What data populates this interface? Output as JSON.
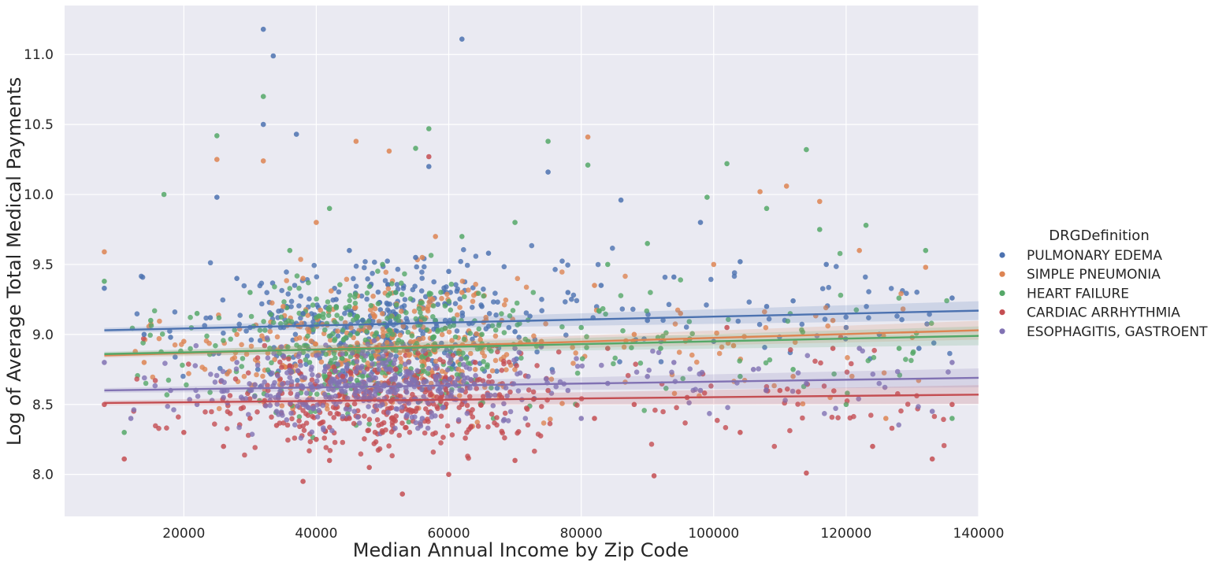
{
  "chart_data": {
    "type": "scatter",
    "xlabel": "Median Annual Income by Zip Code",
    "ylabel": "Log of Average Total Medical Payments",
    "xlim": [
      2000,
      140000
    ],
    "ylim": [
      7.7,
      11.35
    ],
    "x_ticks": [
      20000,
      40000,
      60000,
      80000,
      100000,
      120000,
      140000
    ],
    "y_ticks": [
      8.0,
      8.5,
      9.0,
      9.5,
      10.0,
      10.5,
      11.0
    ],
    "grid": true,
    "background": "#eaeaf2",
    "legend": {
      "title": "DRGDefinition",
      "placement": "right"
    },
    "series": [
      {
        "name": "PULMONARY EDEMA",
        "color": "#4c72b0",
        "regression": {
          "x": [
            8000,
            140000
          ],
          "y": [
            9.03,
            9.17
          ]
        },
        "points": [
          [
            32000,
            11.18
          ],
          [
            33500,
            10.99
          ],
          [
            62000,
            11.11
          ],
          [
            32000,
            10.5
          ],
          [
            37000,
            10.43
          ],
          [
            25000,
            9.98
          ],
          [
            86000,
            9.96
          ],
          [
            75000,
            10.16
          ],
          [
            57000,
            10.2
          ],
          [
            8000,
            9.33
          ],
          [
            131000,
            8.9
          ],
          [
            136000,
            9.26
          ],
          [
            125000,
            9.0
          ],
          [
            112000,
            9.24
          ],
          [
            117000,
            9.5
          ],
          [
            104000,
            9.52
          ],
          [
            94000,
            9.41
          ],
          [
            83000,
            9.35
          ],
          [
            66000,
            9.58
          ],
          [
            60000,
            9.45
          ],
          [
            52000,
            9.3
          ],
          [
            47000,
            9.1
          ],
          [
            43000,
            9.25
          ],
          [
            38000,
            9.15
          ],
          [
            30000,
            9.05
          ],
          [
            24000,
            9.12
          ],
          [
            18000,
            8.98
          ],
          [
            14000,
            9.0
          ],
          [
            50000,
            8.9
          ],
          [
            70000,
            9.02
          ],
          [
            90000,
            9.1
          ],
          [
            100000,
            8.95
          ],
          [
            108000,
            9.2
          ],
          [
            120000,
            9.05
          ],
          [
            28000,
            9.4
          ],
          [
            45000,
            9.6
          ],
          [
            55000,
            9.55
          ],
          [
            65000,
            9.2
          ],
          [
            78000,
            9.3
          ],
          [
            98000,
            9.8
          ]
        ]
      },
      {
        "name": "SIMPLE PNEUMONIA",
        "color": "#dd8452",
        "regression": {
          "x": [
            8000,
            140000
          ],
          "y": [
            8.85,
            9.03
          ]
        },
        "points": [
          [
            8000,
            9.59
          ],
          [
            25000,
            10.25
          ],
          [
            32000,
            10.24
          ],
          [
            46000,
            10.38
          ],
          [
            81000,
            10.41
          ],
          [
            51000,
            10.31
          ],
          [
            107000,
            10.02
          ],
          [
            111000,
            10.06
          ],
          [
            132000,
            9.48
          ],
          [
            122000,
            9.6
          ],
          [
            116000,
            9.95
          ],
          [
            40000,
            9.8
          ],
          [
            56000,
            9.55
          ],
          [
            62000,
            9.3
          ],
          [
            68000,
            9.1
          ],
          [
            35000,
            9.2
          ],
          [
            28000,
            9.0
          ],
          [
            20000,
            8.95
          ],
          [
            14000,
            8.8
          ],
          [
            44000,
            8.9
          ],
          [
            48000,
            9.05
          ],
          [
            54000,
            8.85
          ],
          [
            74000,
            8.95
          ],
          [
            88000,
            9.0
          ],
          [
            95000,
            9.15
          ],
          [
            103000,
            8.92
          ],
          [
            118000,
            9.1
          ],
          [
            126000,
            8.4
          ],
          [
            112000,
            8.7
          ],
          [
            38000,
            9.4
          ],
          [
            58000,
            9.7
          ],
          [
            64000,
            8.75
          ],
          [
            82000,
            9.35
          ],
          [
            100000,
            9.5
          ]
        ]
      },
      {
        "name": "HEART FAILURE",
        "color": "#55a868",
        "regression": {
          "x": [
            8000,
            140000
          ],
          "y": [
            8.86,
            8.99
          ]
        },
        "points": [
          [
            32000,
            10.7
          ],
          [
            25000,
            10.42
          ],
          [
            57000,
            10.47
          ],
          [
            114000,
            10.32
          ],
          [
            102000,
            10.22
          ],
          [
            81000,
            10.21
          ],
          [
            55000,
            10.33
          ],
          [
            75000,
            10.38
          ],
          [
            17000,
            10.0
          ],
          [
            8000,
            9.38
          ],
          [
            136000,
            8.4
          ],
          [
            132000,
            9.6
          ],
          [
            123000,
            9.78
          ],
          [
            128000,
            8.9
          ],
          [
            116000,
            9.75
          ],
          [
            108000,
            9.9
          ],
          [
            99000,
            9.98
          ],
          [
            90000,
            9.65
          ],
          [
            84000,
            9.5
          ],
          [
            70000,
            9.8
          ],
          [
            62000,
            9.7
          ],
          [
            50000,
            9.5
          ],
          [
            42000,
            9.9
          ],
          [
            36000,
            9.6
          ],
          [
            30000,
            9.3
          ],
          [
            22000,
            9.15
          ],
          [
            15000,
            9.1
          ],
          [
            11000,
            8.3
          ],
          [
            45000,
            9.2
          ],
          [
            52000,
            9.3
          ],
          [
            58000,
            9.1
          ],
          [
            65000,
            9.0
          ],
          [
            72000,
            8.95
          ],
          [
            80000,
            9.05
          ],
          [
            92000,
            8.9
          ],
          [
            104000,
            8.7
          ],
          [
            112000,
            8.75
          ],
          [
            120000,
            8.5
          ],
          [
            39000,
            8.8
          ],
          [
            47000,
            8.7
          ]
        ]
      },
      {
        "name": "CARDIAC ARRHYTHMIA",
        "color": "#c44e52",
        "regression": {
          "x": [
            8000,
            140000
          ],
          "y": [
            8.51,
            8.57
          ]
        },
        "points": [
          [
            53000,
            7.86
          ],
          [
            57000,
            10.27
          ],
          [
            42000,
            8.1
          ],
          [
            48000,
            8.05
          ],
          [
            38000,
            7.95
          ],
          [
            60000,
            8.0
          ],
          [
            70000,
            8.1
          ],
          [
            91000,
            7.99
          ],
          [
            114000,
            8.01
          ],
          [
            133000,
            8.11
          ],
          [
            11000,
            8.11
          ],
          [
            8000,
            8.5
          ],
          [
            20000,
            8.3
          ],
          [
            26000,
            8.2
          ],
          [
            30000,
            8.4
          ],
          [
            34000,
            8.35
          ],
          [
            40000,
            8.25
          ],
          [
            45000,
            8.4
          ],
          [
            50000,
            8.3
          ],
          [
            55000,
            8.45
          ],
          [
            62000,
            8.5
          ],
          [
            68000,
            8.55
          ],
          [
            75000,
            8.6
          ],
          [
            82000,
            8.4
          ],
          [
            88000,
            8.5
          ],
          [
            96000,
            8.55
          ],
          [
            104000,
            8.3
          ],
          [
            110000,
            8.6
          ],
          [
            118000,
            8.9
          ],
          [
            124000,
            8.2
          ],
          [
            136000,
            8.5
          ],
          [
            44000,
            8.7
          ],
          [
            52000,
            8.75
          ],
          [
            64000,
            8.8
          ],
          [
            84000,
            8.9
          ],
          [
            102000,
            9.05
          ]
        ]
      },
      {
        "name": "ESOPHAGITIS, GASTROENT",
        "color": "#8172b3",
        "regression": {
          "x": [
            8000,
            140000
          ],
          "y": [
            8.6,
            8.69
          ]
        },
        "points": [
          [
            8000,
            8.8
          ],
          [
            12000,
            8.4
          ],
          [
            18000,
            8.6
          ],
          [
            22000,
            8.5
          ],
          [
            26000,
            8.55
          ],
          [
            30000,
            8.6
          ],
          [
            34000,
            8.45
          ],
          [
            38000,
            8.5
          ],
          [
            42000,
            8.55
          ],
          [
            46000,
            8.6
          ],
          [
            50000,
            8.5
          ],
          [
            54000,
            8.65
          ],
          [
            58000,
            8.7
          ],
          [
            62000,
            8.6
          ],
          [
            66000,
            8.55
          ],
          [
            72000,
            8.7
          ],
          [
            78000,
            8.6
          ],
          [
            84000,
            8.65
          ],
          [
            90000,
            8.7
          ],
          [
            98000,
            8.6
          ],
          [
            106000,
            8.75
          ],
          [
            114000,
            8.65
          ],
          [
            122000,
            8.9
          ],
          [
            133000,
            8.45
          ],
          [
            136000,
            8.8
          ],
          [
            28000,
            8.8
          ],
          [
            40000,
            8.85
          ],
          [
            48000,
            8.9
          ],
          [
            56000,
            8.4
          ],
          [
            70000,
            8.9
          ],
          [
            80000,
            8.4
          ],
          [
            94000,
            8.8
          ]
        ]
      }
    ]
  }
}
